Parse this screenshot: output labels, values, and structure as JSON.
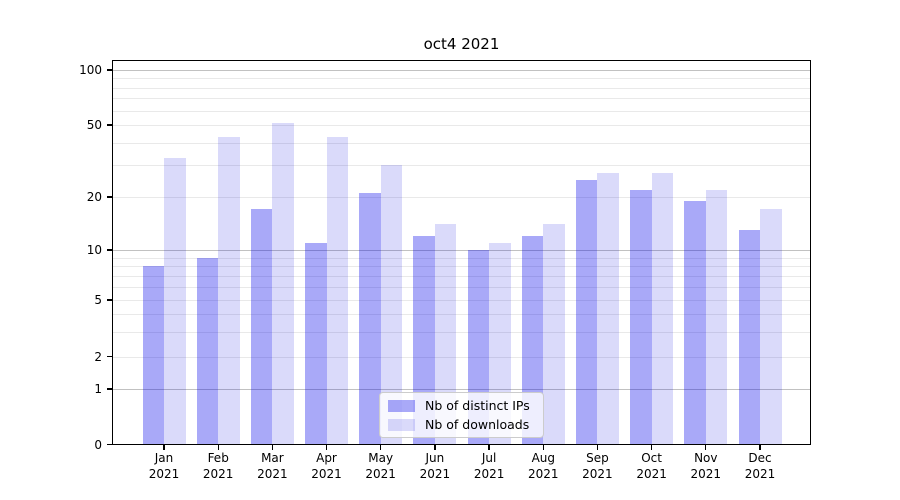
{
  "title": "oct4 2021",
  "chart_data": {
    "type": "bar",
    "title": "oct4 2021",
    "categories": [
      "Jan 2021",
      "Feb 2021",
      "Mar 2021",
      "Apr 2021",
      "May 2021",
      "Jun 2021",
      "Jul 2021",
      "Aug 2021",
      "Sep 2021",
      "Oct 2021",
      "Nov 2021",
      "Dec 2021"
    ],
    "series": [
      {
        "name": "Nb of distinct IPs",
        "color": "rgba(10,10,235,0.35)",
        "values": [
          8,
          9,
          17,
          11,
          21,
          12,
          10,
          12,
          25,
          22,
          19,
          13
        ]
      },
      {
        "name": "Nb of downloads",
        "color": "rgba(10,10,220,0.15)",
        "values": [
          33,
          43,
          51,
          43,
          30,
          14,
          11,
          14,
          27,
          27,
          22,
          17
        ]
      }
    ],
    "xlabel": "",
    "ylabel": "",
    "y_ticks": [
      0,
      1,
      2,
      5,
      10,
      20,
      50,
      100
    ],
    "y_major_gridlines": [
      1,
      10,
      100
    ],
    "y_minor_gridlines": [
      2,
      3,
      4,
      5,
      6,
      7,
      8,
      9,
      20,
      30,
      40,
      50,
      60,
      70,
      80,
      90
    ],
    "ylim": [
      0,
      113
    ],
    "yscale": "log above 1, compressed linear below 1",
    "grid": true,
    "legend_position": "lower center",
    "colors": {
      "distinct_ips_bar": "#a9a9f8",
      "downloads_bar": "#d9d9fa",
      "major_gridline": "#c1c1c1",
      "minor_gridline": "#e9e9e9",
      "spine": "#000000"
    }
  }
}
